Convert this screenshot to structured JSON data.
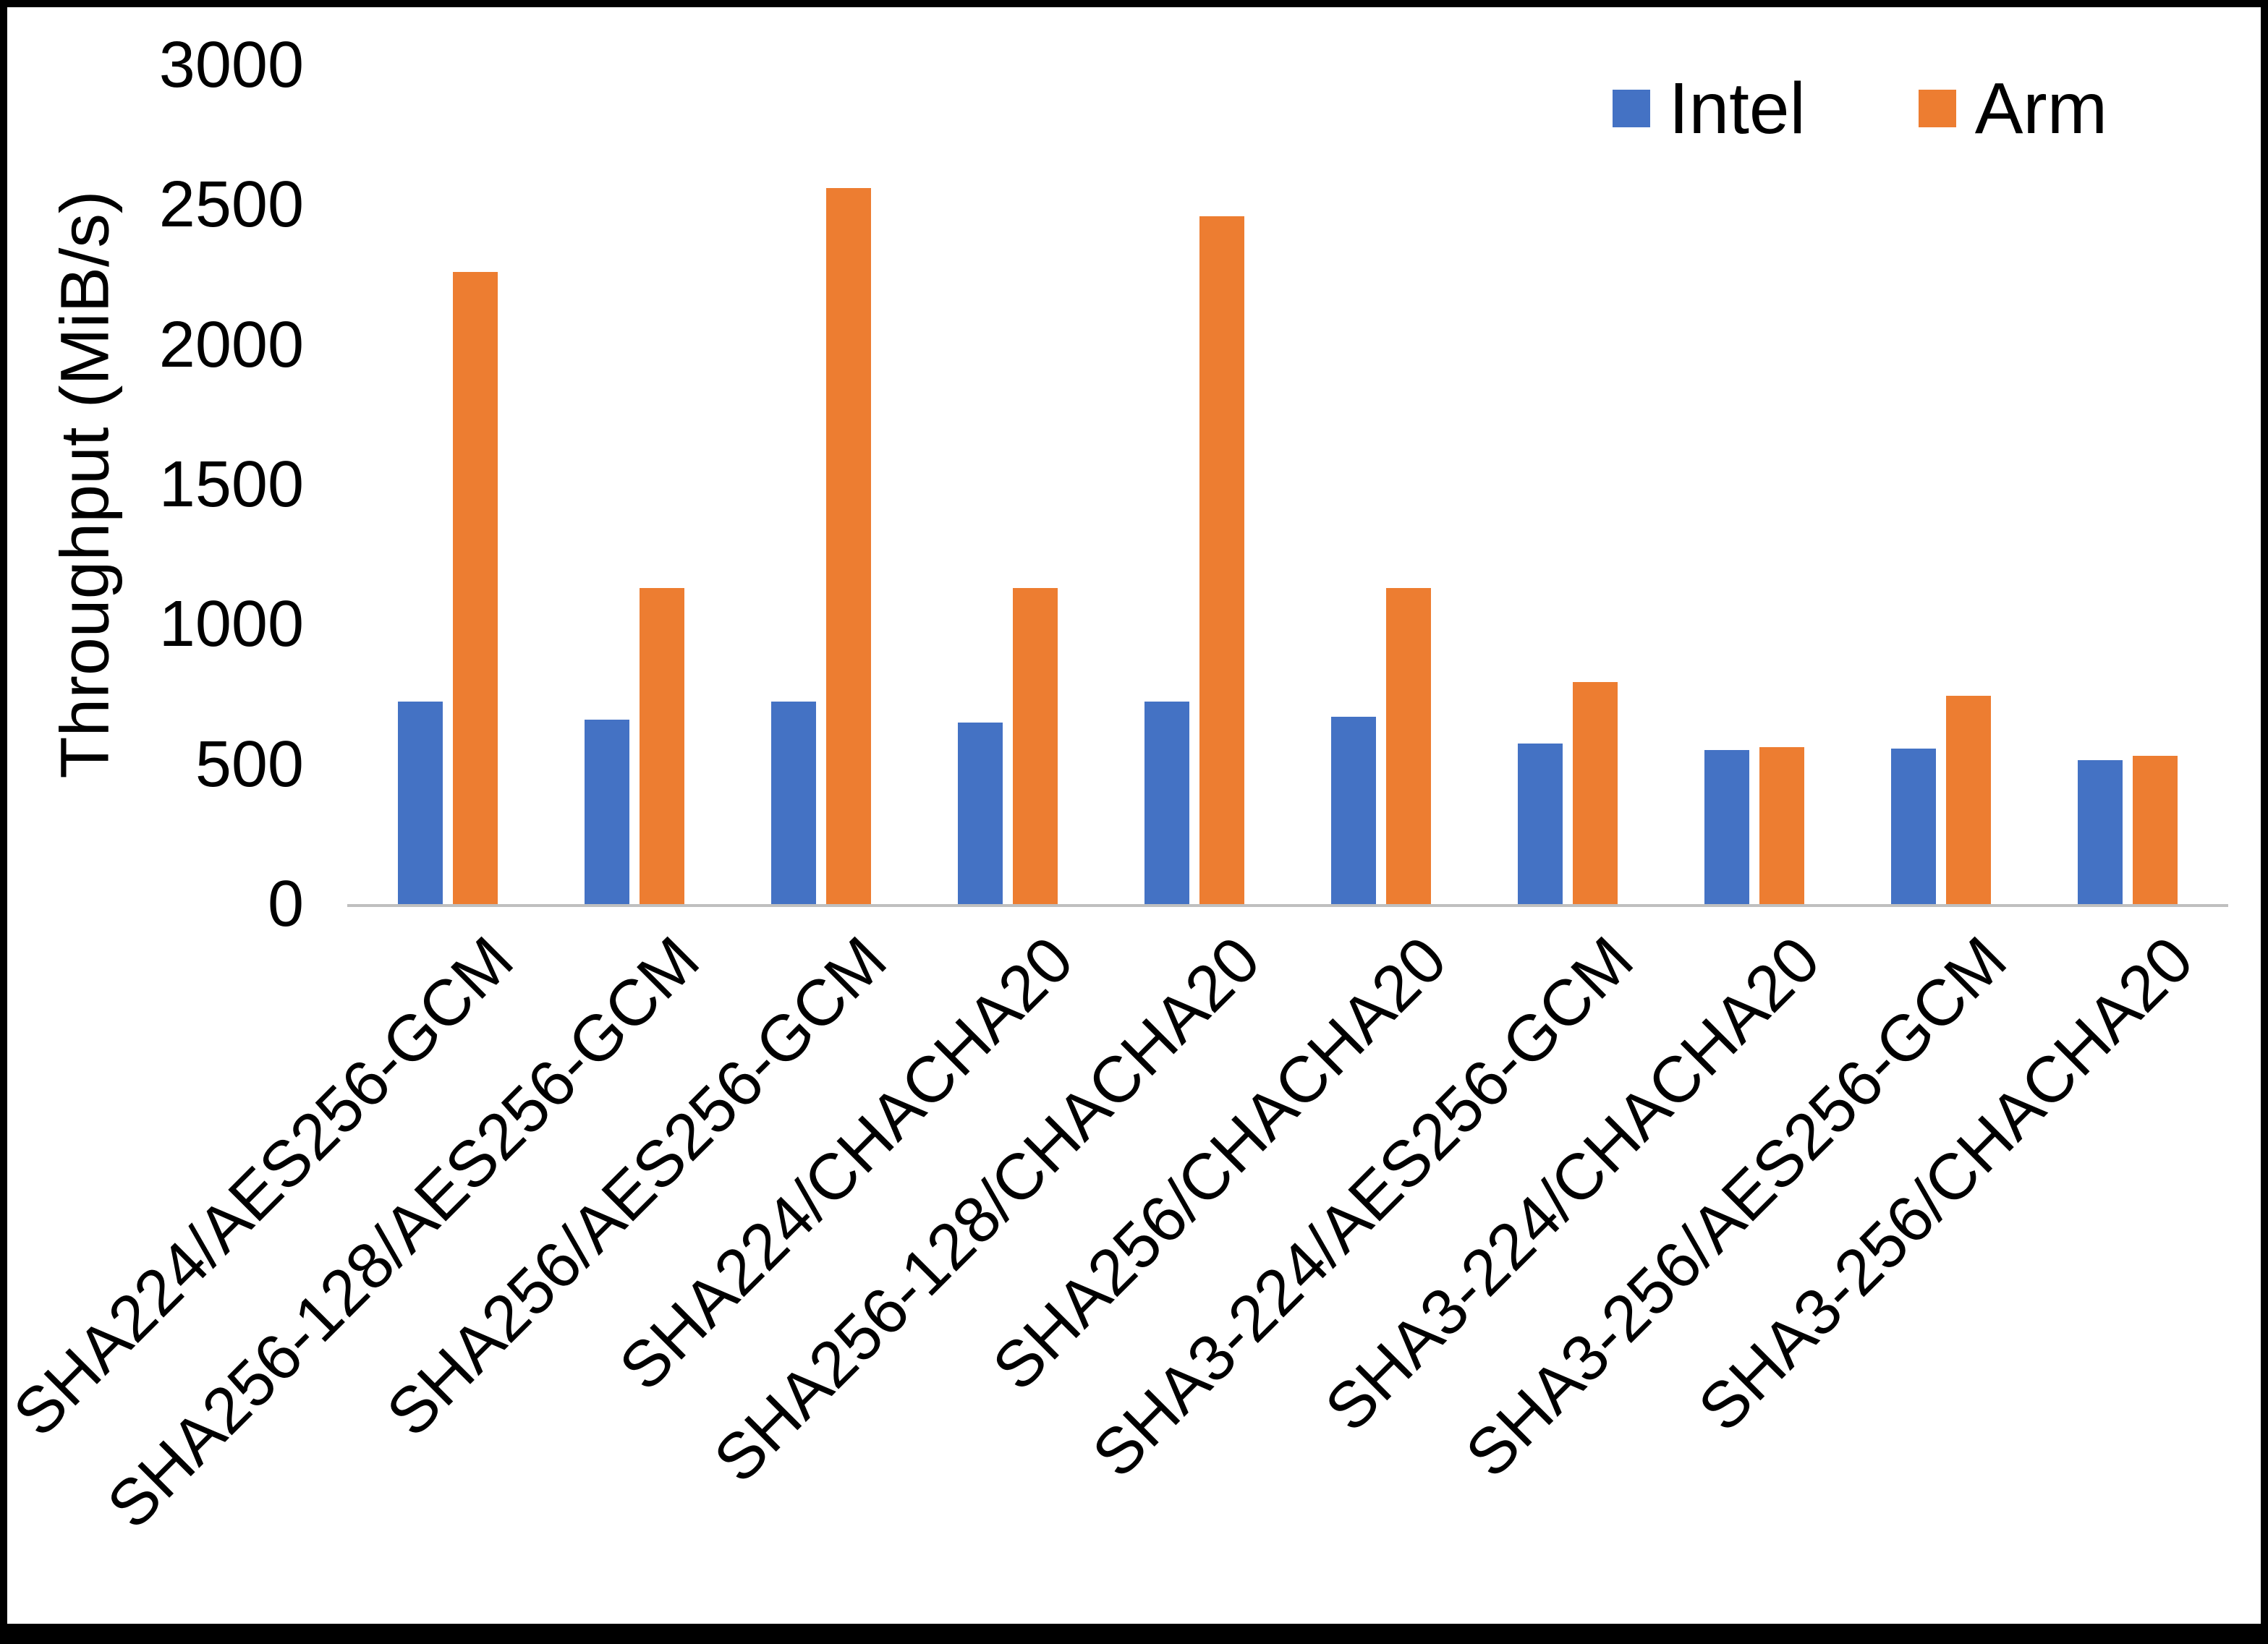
{
  "chart_data": {
    "type": "bar",
    "title": "",
    "xlabel": "",
    "ylabel": "Throughput (MiB/s)",
    "ylim": [
      0,
      3000
    ],
    "yticks": [
      0,
      500,
      1000,
      1500,
      2000,
      2500,
      3000
    ],
    "grid": false,
    "legend_position": "top-right",
    "categories": [
      "SHA224/AES256-GCM",
      "SHA256-128/AES256-GCM",
      "SHA256/AES256-GCM",
      "SHA224/CHACHA20",
      "SHA256-128/CHACHA20",
      "SHA256/CHACHA20",
      "SHA3-224/AES256-GCM",
      "SHA3-224/CHACHA20",
      "SHA3-256/AES256-GCM",
      "SHA3-256/CHACHA20"
    ],
    "series": [
      {
        "name": "Intel",
        "color": "#4472C4",
        "values": [
          725,
          660,
          725,
          650,
          725,
          670,
          575,
          550,
          555,
          515
        ]
      },
      {
        "name": "Arm",
        "color": "#ED7D31",
        "values": [
          2260,
          1130,
          2560,
          1130,
          2460,
          1130,
          795,
          560,
          745,
          530
        ]
      }
    ]
  },
  "frame": {
    "background": "#FFFFFF",
    "border_color": "#000000",
    "axis_line_color": "#BFBFBF"
  }
}
